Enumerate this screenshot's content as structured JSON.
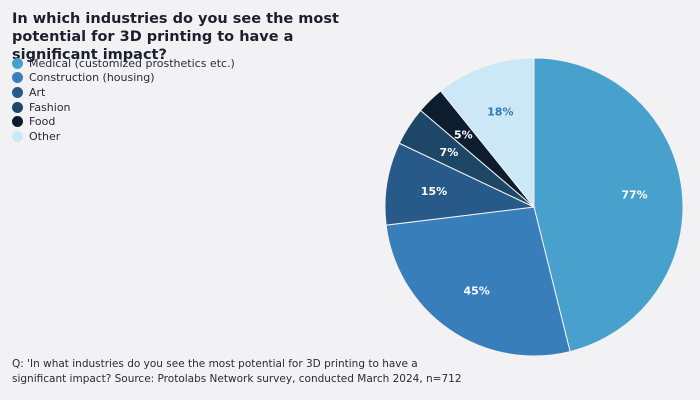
{
  "chart_data": {
    "type": "pie",
    "title": "In which industries do you see the most potential for 3D printing to have a significant impact?",
    "legend_placement": "top-left",
    "series": [
      {
        "name": "Medical (customized prosthetics etc.)",
        "value": 77,
        "label": "77%",
        "color": "#47a1cc",
        "label_color": "#ffffff"
      },
      {
        "name": "Construction (housing)",
        "value": 45,
        "label": "45%",
        "color": "#387ebb",
        "label_color": "#ffffff"
      },
      {
        "name": "Art",
        "value": 15,
        "label": "15%",
        "color": "#285a89",
        "label_color": "#ffffff"
      },
      {
        "name": "Fashion",
        "value": 7,
        "label": "7%",
        "color": "#1e4666",
        "label_color": "#ffffff"
      },
      {
        "name": "Food",
        "value": 5,
        "label": "5%",
        "color": "#0b1d2e",
        "label_color": "#ffffff"
      },
      {
        "name": "Other",
        "value": 18,
        "label": "18%",
        "color": "#cce8f7",
        "label_color": "#2f7ab2"
      }
    ]
  },
  "footnote": "Q: 'In what industries do you see the most potential for 3D printing to have a significant impact? Source: Protolabs Network survey, conducted March 2024, n=712"
}
